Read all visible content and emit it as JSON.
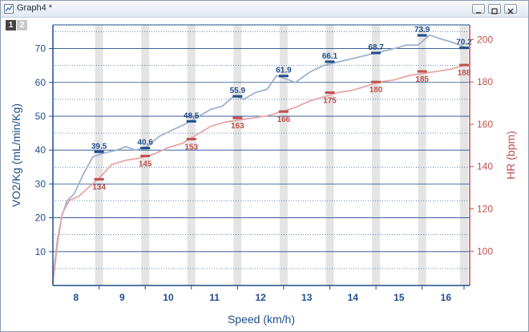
{
  "window": {
    "title": "Graph4 *"
  },
  "layers": [
    "1",
    "2"
  ],
  "colors": {
    "left_axis": "#1f4e8c",
    "right_axis": "#c0504d",
    "vo2_line": "#9fb2cf",
    "hr_line": "#e7a6a6",
    "band": "#e4e4e4",
    "grid": "#1f4e8c"
  },
  "chart_data": {
    "type": "line",
    "xlabel": "Speed (km/h)",
    "ylabel_left": "VO2/Kg (mL/min/Kg)",
    "ylabel_right": "HR (bpm)",
    "x_ticks": [
      "8",
      "9",
      "10",
      "11",
      "12",
      "13",
      "14",
      "15",
      "16"
    ],
    "xlim": [
      7.45,
      16.3
    ],
    "ylim_left": [
      0,
      77
    ],
    "ylim_right": [
      83.8,
      207
    ],
    "y_ticks_left": [
      10,
      20,
      30,
      40,
      50,
      60,
      70
    ],
    "y_ticks_right": [
      100,
      120,
      140,
      160,
      180,
      200
    ],
    "grid": "horizontal",
    "series": [
      {
        "axis": "left",
        "x": [
          7.45,
          7.55,
          7.65,
          7.75,
          7.9,
          8.1,
          8.3,
          8.5,
          8.8,
          9.0,
          9.2,
          9.45,
          9.7,
          10.0,
          10.3,
          10.55,
          10.8,
          11.05,
          11.3,
          11.5,
          11.75,
          12.0,
          12.2,
          12.4,
          12.6,
          12.9,
          13.2,
          13.5,
          13.8,
          14.1,
          14.4,
          14.7,
          14.95,
          15.2,
          15.45,
          15.65,
          15.9,
          16.1,
          16.25
        ],
        "y": [
          2,
          14,
          21,
          25,
          27,
          33,
          38,
          39,
          40,
          41,
          40,
          41,
          44,
          46,
          48,
          50,
          52,
          53,
          56,
          55,
          57,
          58,
          62,
          61,
          60,
          63,
          65,
          66,
          67,
          68,
          69,
          70,
          71,
          71,
          74,
          73,
          72,
          71,
          70
        ]
      },
      {
        "axis": "right",
        "x": [
          7.45,
          7.55,
          7.65,
          7.8,
          8.0,
          8.2,
          8.45,
          8.7,
          9.0,
          9.3,
          9.6,
          9.9,
          10.2,
          10.5,
          10.8,
          11.1,
          11.4,
          11.7,
          12.0,
          12.3,
          12.6,
          12.9,
          13.2,
          13.5,
          13.8,
          14.1,
          14.4,
          14.7,
          15.0,
          15.3,
          15.6,
          15.9,
          16.2
        ],
        "y": [
          85,
          104,
          118,
          124,
          126,
          130,
          135,
          141,
          143,
          144,
          146,
          149,
          151,
          155,
          159,
          161,
          162,
          163,
          164,
          166,
          168,
          171,
          173,
          175,
          176,
          178,
          180,
          181,
          183,
          184,
          185,
          186,
          188
        ]
      }
    ],
    "bands_x": [
      8.43,
      9.41,
      10.39,
      11.37,
      12.35,
      13.33,
      14.31,
      15.29,
      16.18
    ],
    "annotations_left": [
      {
        "x": 8.43,
        "y": 39.5,
        "label": "39.5"
      },
      {
        "x": 9.41,
        "y": 40.6,
        "label": "40.6"
      },
      {
        "x": 10.39,
        "y": 48.5,
        "label": "48.5"
      },
      {
        "x": 11.37,
        "y": 55.9,
        "label": "55.9"
      },
      {
        "x": 12.35,
        "y": 61.9,
        "label": "61.9"
      },
      {
        "x": 13.33,
        "y": 66.1,
        "label": "66.1"
      },
      {
        "x": 14.31,
        "y": 68.7,
        "label": "68.7"
      },
      {
        "x": 15.29,
        "y": 73.9,
        "label": "73.9"
      },
      {
        "x": 16.18,
        "y": 70.2,
        "label": "70.2"
      }
    ],
    "annotations_right": [
      {
        "x": 8.43,
        "y": 134,
        "label": "134"
      },
      {
        "x": 9.41,
        "y": 145,
        "label": "145"
      },
      {
        "x": 10.39,
        "y": 153,
        "label": "153"
      },
      {
        "x": 11.37,
        "y": 163,
        "label": "163"
      },
      {
        "x": 12.35,
        "y": 166,
        "label": "166"
      },
      {
        "x": 13.33,
        "y": 175,
        "label": "175"
      },
      {
        "x": 14.31,
        "y": 180,
        "label": "180"
      },
      {
        "x": 15.29,
        "y": 185,
        "label": "185"
      },
      {
        "x": 16.18,
        "y": 188,
        "label": "188"
      }
    ]
  }
}
